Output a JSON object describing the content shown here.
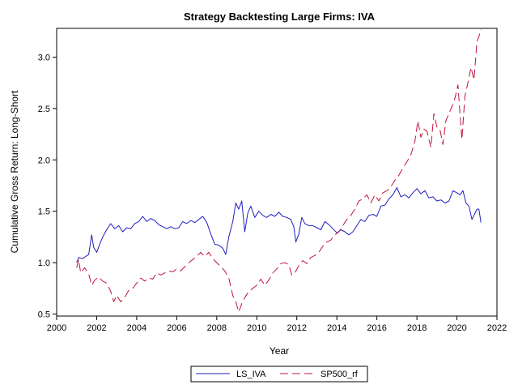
{
  "chart_data": {
    "type": "line",
    "title": "Strategy Backtesting Large Firms: IVA",
    "xlabel": "Year",
    "ylabel": "Cumulative Gross Return: Long-Short",
    "xlim": [
      2000,
      2022
    ],
    "ylim": [
      0.48,
      3.28
    ],
    "x_ticks": [
      2000,
      2002,
      2004,
      2006,
      2008,
      2010,
      2012,
      2014,
      2016,
      2018,
      2020,
      2022
    ],
    "y_ticks": [
      0.5,
      1.0,
      1.5,
      2.0,
      2.5,
      3.0
    ],
    "y_tick_labels": [
      "0.5",
      "1.0",
      "1.5",
      "2.0",
      "2.5",
      "3.0"
    ],
    "legend_position": "bottom-center",
    "grid": false,
    "series": [
      {
        "name": "LS_IVA",
        "color": "#1f1fbf",
        "dash": "solid",
        "points": [
          [
            2001.0,
            1.0
          ],
          [
            2001.1,
            1.05
          ],
          [
            2001.3,
            1.04
          ],
          [
            2001.6,
            1.08
          ],
          [
            2001.75,
            1.27
          ],
          [
            2001.85,
            1.15
          ],
          [
            2002.0,
            1.1
          ],
          [
            2002.15,
            1.18
          ],
          [
            2002.3,
            1.25
          ],
          [
            2002.5,
            1.32
          ],
          [
            2002.7,
            1.38
          ],
          [
            2002.9,
            1.33
          ],
          [
            2003.1,
            1.36
          ],
          [
            2003.3,
            1.3
          ],
          [
            2003.5,
            1.34
          ],
          [
            2003.7,
            1.33
          ],
          [
            2003.9,
            1.38
          ],
          [
            2004.1,
            1.4
          ],
          [
            2004.3,
            1.45
          ],
          [
            2004.5,
            1.4
          ],
          [
            2004.7,
            1.43
          ],
          [
            2004.9,
            1.41
          ],
          [
            2005.1,
            1.37
          ],
          [
            2005.3,
            1.35
          ],
          [
            2005.5,
            1.33
          ],
          [
            2005.7,
            1.35
          ],
          [
            2005.9,
            1.33
          ],
          [
            2006.1,
            1.34
          ],
          [
            2006.3,
            1.4
          ],
          [
            2006.5,
            1.38
          ],
          [
            2006.7,
            1.41
          ],
          [
            2006.9,
            1.39
          ],
          [
            2007.1,
            1.42
          ],
          [
            2007.3,
            1.45
          ],
          [
            2007.5,
            1.39
          ],
          [
            2007.7,
            1.28
          ],
          [
            2007.9,
            1.18
          ],
          [
            2008.1,
            1.17
          ],
          [
            2008.3,
            1.14
          ],
          [
            2008.45,
            1.08
          ],
          [
            2008.6,
            1.25
          ],
          [
            2008.8,
            1.4
          ],
          [
            2008.95,
            1.58
          ],
          [
            2009.1,
            1.52
          ],
          [
            2009.25,
            1.6
          ],
          [
            2009.4,
            1.3
          ],
          [
            2009.55,
            1.48
          ],
          [
            2009.7,
            1.55
          ],
          [
            2009.9,
            1.44
          ],
          [
            2010.1,
            1.5
          ],
          [
            2010.3,
            1.46
          ],
          [
            2010.5,
            1.44
          ],
          [
            2010.7,
            1.47
          ],
          [
            2010.9,
            1.45
          ],
          [
            2011.1,
            1.49
          ],
          [
            2011.3,
            1.45
          ],
          [
            2011.5,
            1.44
          ],
          [
            2011.7,
            1.42
          ],
          [
            2011.85,
            1.35
          ],
          [
            2011.95,
            1.2
          ],
          [
            2012.1,
            1.28
          ],
          [
            2012.25,
            1.44
          ],
          [
            2012.4,
            1.38
          ],
          [
            2012.6,
            1.36
          ],
          [
            2012.8,
            1.36
          ],
          [
            2013.0,
            1.34
          ],
          [
            2013.2,
            1.32
          ],
          [
            2013.4,
            1.4
          ],
          [
            2013.6,
            1.37
          ],
          [
            2013.8,
            1.33
          ],
          [
            2014.0,
            1.29
          ],
          [
            2014.2,
            1.32
          ],
          [
            2014.4,
            1.3
          ],
          [
            2014.6,
            1.27
          ],
          [
            2014.8,
            1.3
          ],
          [
            2015.0,
            1.36
          ],
          [
            2015.2,
            1.42
          ],
          [
            2015.4,
            1.4
          ],
          [
            2015.6,
            1.46
          ],
          [
            2015.8,
            1.47
          ],
          [
            2016.0,
            1.45
          ],
          [
            2016.2,
            1.55
          ],
          [
            2016.4,
            1.56
          ],
          [
            2016.6,
            1.62
          ],
          [
            2016.8,
            1.66
          ],
          [
            2017.0,
            1.73
          ],
          [
            2017.2,
            1.64
          ],
          [
            2017.4,
            1.66
          ],
          [
            2017.6,
            1.63
          ],
          [
            2017.8,
            1.68
          ],
          [
            2018.0,
            1.72
          ],
          [
            2018.2,
            1.67
          ],
          [
            2018.4,
            1.7
          ],
          [
            2018.6,
            1.63
          ],
          [
            2018.8,
            1.64
          ],
          [
            2019.0,
            1.6
          ],
          [
            2019.2,
            1.61
          ],
          [
            2019.4,
            1.58
          ],
          [
            2019.6,
            1.6
          ],
          [
            2019.8,
            1.7
          ],
          [
            2020.0,
            1.68
          ],
          [
            2020.15,
            1.66
          ],
          [
            2020.3,
            1.7
          ],
          [
            2020.45,
            1.58
          ],
          [
            2020.6,
            1.55
          ],
          [
            2020.75,
            1.42
          ],
          [
            2020.9,
            1.48
          ],
          [
            2021.0,
            1.52
          ],
          [
            2021.1,
            1.52
          ],
          [
            2021.2,
            1.39
          ]
        ]
      },
      {
        "name": "SP500_rf",
        "color": "#c0143c",
        "dash": "long-dash",
        "points": [
          [
            2001.0,
            0.95
          ],
          [
            2001.1,
            1.03
          ],
          [
            2001.2,
            0.9
          ],
          [
            2001.4,
            0.95
          ],
          [
            2001.6,
            0.89
          ],
          [
            2001.75,
            0.78
          ],
          [
            2001.9,
            0.83
          ],
          [
            2002.1,
            0.86
          ],
          [
            2002.3,
            0.82
          ],
          [
            2002.5,
            0.8
          ],
          [
            2002.7,
            0.72
          ],
          [
            2002.85,
            0.62
          ],
          [
            2003.0,
            0.68
          ],
          [
            2003.2,
            0.62
          ],
          [
            2003.4,
            0.66
          ],
          [
            2003.6,
            0.73
          ],
          [
            2003.8,
            0.75
          ],
          [
            2004.0,
            0.8
          ],
          [
            2004.2,
            0.85
          ],
          [
            2004.4,
            0.82
          ],
          [
            2004.6,
            0.85
          ],
          [
            2004.8,
            0.84
          ],
          [
            2005.0,
            0.9
          ],
          [
            2005.2,
            0.88
          ],
          [
            2005.4,
            0.9
          ],
          [
            2005.6,
            0.92
          ],
          [
            2005.8,
            0.91
          ],
          [
            2006.0,
            0.94
          ],
          [
            2006.2,
            0.92
          ],
          [
            2006.4,
            0.96
          ],
          [
            2006.6,
            1.0
          ],
          [
            2006.8,
            1.03
          ],
          [
            2007.0,
            1.06
          ],
          [
            2007.2,
            1.1
          ],
          [
            2007.4,
            1.06
          ],
          [
            2007.6,
            1.1
          ],
          [
            2007.8,
            1.04
          ],
          [
            2008.0,
            1.0
          ],
          [
            2008.2,
            0.96
          ],
          [
            2008.4,
            0.92
          ],
          [
            2008.6,
            0.85
          ],
          [
            2008.8,
            0.68
          ],
          [
            2008.95,
            0.62
          ],
          [
            2009.1,
            0.52
          ],
          [
            2009.25,
            0.6
          ],
          [
            2009.4,
            0.66
          ],
          [
            2009.6,
            0.72
          ],
          [
            2009.8,
            0.75
          ],
          [
            2010.0,
            0.78
          ],
          [
            2010.2,
            0.84
          ],
          [
            2010.4,
            0.78
          ],
          [
            2010.6,
            0.83
          ],
          [
            2010.8,
            0.9
          ],
          [
            2011.0,
            0.94
          ],
          [
            2011.2,
            0.99
          ],
          [
            2011.4,
            1.0
          ],
          [
            2011.6,
            0.98
          ],
          [
            2011.75,
            0.88
          ],
          [
            2011.9,
            0.9
          ],
          [
            2012.1,
            0.97
          ],
          [
            2012.3,
            1.02
          ],
          [
            2012.5,
            0.99
          ],
          [
            2012.7,
            1.05
          ],
          [
            2012.9,
            1.07
          ],
          [
            2013.1,
            1.1
          ],
          [
            2013.3,
            1.16
          ],
          [
            2013.5,
            1.2
          ],
          [
            2013.7,
            1.22
          ],
          [
            2013.9,
            1.27
          ],
          [
            2014.1,
            1.3
          ],
          [
            2014.3,
            1.36
          ],
          [
            2014.5,
            1.42
          ],
          [
            2014.7,
            1.46
          ],
          [
            2014.9,
            1.52
          ],
          [
            2015.1,
            1.6
          ],
          [
            2015.3,
            1.62
          ],
          [
            2015.5,
            1.66
          ],
          [
            2015.7,
            1.58
          ],
          [
            2015.9,
            1.66
          ],
          [
            2016.1,
            1.6
          ],
          [
            2016.3,
            1.68
          ],
          [
            2016.5,
            1.7
          ],
          [
            2016.7,
            1.74
          ],
          [
            2016.9,
            1.8
          ],
          [
            2017.1,
            1.85
          ],
          [
            2017.3,
            1.92
          ],
          [
            2017.5,
            1.98
          ],
          [
            2017.7,
            2.05
          ],
          [
            2017.9,
            2.18
          ],
          [
            2018.05,
            2.38
          ],
          [
            2018.2,
            2.22
          ],
          [
            2018.35,
            2.3
          ],
          [
            2018.5,
            2.28
          ],
          [
            2018.7,
            2.12
          ],
          [
            2018.85,
            2.45
          ],
          [
            2019.0,
            2.32
          ],
          [
            2019.15,
            2.3
          ],
          [
            2019.3,
            2.15
          ],
          [
            2019.45,
            2.38
          ],
          [
            2019.6,
            2.45
          ],
          [
            2019.75,
            2.52
          ],
          [
            2019.9,
            2.6
          ],
          [
            2020.05,
            2.73
          ],
          [
            2020.15,
            2.45
          ],
          [
            2020.25,
            2.2
          ],
          [
            2020.4,
            2.62
          ],
          [
            2020.55,
            2.75
          ],
          [
            2020.7,
            2.9
          ],
          [
            2020.85,
            2.78
          ],
          [
            2021.0,
            3.15
          ],
          [
            2021.1,
            3.2
          ],
          [
            2021.2,
            3.27
          ]
        ]
      }
    ]
  }
}
